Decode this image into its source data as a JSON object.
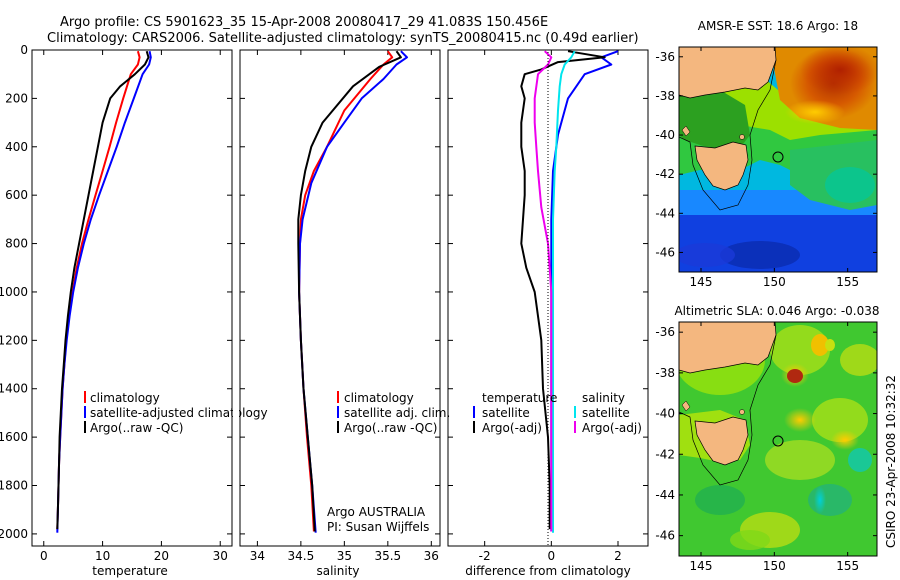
{
  "header": {
    "line1": "Argo profile: CS 5901623_35 15-Apr-2008 20080417_29 41.083S 150.456E",
    "line2": "Climatology: CARS2006. Satellite-adjusted climatology: synTS_20080415.nc (0.49d earlier)"
  },
  "footer": {
    "credit": "CSIRO 23-Apr-2008 10:32:32",
    "argo_agency": "Argo AUSTRALIA",
    "pi": "PI: Susan Wijffels"
  },
  "colors": {
    "climatology": "#ff0000",
    "satellite": "#0000ff",
    "argo": "#000000",
    "sal_satellite": "#00e5ee",
    "sal_argo": "#ee00ee",
    "land": "#f4b77f"
  },
  "chart_data": [
    {
      "type": "line",
      "panel": "temperature",
      "xlabel": "temperature",
      "ylabel": "",
      "xlim": [
        -2,
        32
      ],
      "ylim": [
        2050,
        0
      ],
      "xticks": [
        "0",
        "10",
        "20",
        "30"
      ],
      "yticks": [
        "0",
        "200",
        "400",
        "600",
        "800",
        "1000",
        "1200",
        "1400",
        "1600",
        "1800",
        "2000"
      ],
      "y_reversed": true,
      "legend": [
        "climatology",
        "satellite-adjusted climatology",
        "Argo(..raw -QC)"
      ],
      "series": [
        {
          "name": "climatology",
          "color": "#ff0000",
          "points": [
            [
              16.0,
              5
            ],
            [
              16.3,
              30
            ],
            [
              16.0,
              60
            ],
            [
              14.8,
              100
            ],
            [
              13.5,
              200
            ],
            [
              12.3,
              300
            ],
            [
              11.2,
              400
            ],
            [
              10.0,
              500
            ],
            [
              8.8,
              600
            ],
            [
              7.6,
              700
            ],
            [
              6.5,
              800
            ],
            [
              5.6,
              900
            ],
            [
              4.9,
              1000
            ],
            [
              4.3,
              1100
            ],
            [
              3.8,
              1200
            ],
            [
              3.5,
              1300
            ],
            [
              3.2,
              1400
            ],
            [
              3.0,
              1500
            ],
            [
              2.8,
              1600
            ],
            [
              2.6,
              1700
            ],
            [
              2.5,
              1800
            ],
            [
              2.4,
              1900
            ],
            [
              2.3,
              1980
            ]
          ]
        },
        {
          "name": "satellite-adjusted climatology",
          "color": "#0000ff",
          "points": [
            [
              18.0,
              5
            ],
            [
              18.2,
              30
            ],
            [
              17.9,
              60
            ],
            [
              16.8,
              100
            ],
            [
              15.3,
              200
            ],
            [
              13.8,
              300
            ],
            [
              12.4,
              400
            ],
            [
              10.9,
              500
            ],
            [
              9.4,
              600
            ],
            [
              8.0,
              700
            ],
            [
              6.8,
              800
            ],
            [
              5.8,
              900
            ],
            [
              5.0,
              1000
            ],
            [
              4.4,
              1100
            ],
            [
              3.9,
              1200
            ],
            [
              3.5,
              1300
            ],
            [
              3.2,
              1400
            ],
            [
              3.0,
              1500
            ],
            [
              2.8,
              1600
            ],
            [
              2.6,
              1700
            ],
            [
              2.5,
              1800
            ],
            [
              2.4,
              1900
            ],
            [
              2.3,
              1995
            ]
          ]
        },
        {
          "name": "Argo(..raw -QC)",
          "color": "#000000",
          "points": [
            [
              17.5,
              5
            ],
            [
              17.8,
              30
            ],
            [
              17.2,
              60
            ],
            [
              15.5,
              100
            ],
            [
              13.0,
              150
            ],
            [
              11.3,
              200
            ],
            [
              10.0,
              300
            ],
            [
              9.2,
              400
            ],
            [
              8.4,
              500
            ],
            [
              7.6,
              600
            ],
            [
              6.8,
              700
            ],
            [
              6.0,
              800
            ],
            [
              5.2,
              900
            ],
            [
              4.6,
              1000
            ],
            [
              4.1,
              1100
            ],
            [
              3.7,
              1200
            ],
            [
              3.4,
              1300
            ],
            [
              3.1,
              1400
            ],
            [
              2.9,
              1500
            ],
            [
              2.7,
              1600
            ],
            [
              2.6,
              1700
            ],
            [
              2.5,
              1800
            ],
            [
              2.4,
              1900
            ],
            [
              2.3,
              1980
            ]
          ]
        }
      ]
    },
    {
      "type": "line",
      "panel": "salinity",
      "xlabel": "salinity",
      "xlim": [
        33.8,
        36.1
      ],
      "ylim": [
        2050,
        0
      ],
      "xticks": [
        "34",
        "34.5",
        "35",
        "35.5",
        "36"
      ],
      "yticks": [],
      "y_reversed": true,
      "legend": [
        "climatology",
        "satellite adj. clim.",
        "Argo(..raw -QC)"
      ],
      "series": [
        {
          "name": "climatology",
          "color": "#ff0000",
          "points": [
            [
              35.5,
              5
            ],
            [
              35.55,
              30
            ],
            [
              35.45,
              60
            ],
            [
              35.3,
              120
            ],
            [
              35.0,
              250
            ],
            [
              34.8,
              400
            ],
            [
              34.65,
              500
            ],
            [
              34.55,
              600
            ],
            [
              34.5,
              700
            ],
            [
              34.49,
              800
            ],
            [
              34.48,
              1000
            ],
            [
              34.5,
              1200
            ],
            [
              34.53,
              1400
            ],
            [
              34.57,
              1600
            ],
            [
              34.62,
              1800
            ],
            [
              34.65,
              1990
            ]
          ]
        },
        {
          "name": "satellite adj. clim.",
          "color": "#0000ff",
          "points": [
            [
              35.65,
              5
            ],
            [
              35.72,
              30
            ],
            [
              35.6,
              60
            ],
            [
              35.45,
              120
            ],
            [
              35.2,
              200
            ],
            [
              35.0,
              300
            ],
            [
              34.8,
              400
            ],
            [
              34.62,
              550
            ],
            [
              34.52,
              700
            ],
            [
              34.49,
              800
            ],
            [
              34.48,
              1000
            ],
            [
              34.5,
              1200
            ],
            [
              34.53,
              1400
            ],
            [
              34.58,
              1600
            ],
            [
              34.63,
              1800
            ],
            [
              34.67,
              1995
            ]
          ]
        },
        {
          "name": "Argo(..raw -QC)",
          "color": "#000000",
          "points": [
            [
              35.6,
              5
            ],
            [
              35.65,
              30
            ],
            [
              35.4,
              70
            ],
            [
              35.1,
              150
            ],
            [
              34.75,
              300
            ],
            [
              34.62,
              400
            ],
            [
              34.55,
              500
            ],
            [
              34.5,
              600
            ],
            [
              34.47,
              700
            ],
            [
              34.47,
              800
            ],
            [
              34.48,
              1000
            ],
            [
              34.5,
              1200
            ],
            [
              34.53,
              1400
            ],
            [
              34.58,
              1600
            ],
            [
              34.63,
              1800
            ],
            [
              34.66,
              1990
            ]
          ]
        }
      ]
    },
    {
      "type": "line",
      "panel": "difference",
      "xlabel": "difference from climatology",
      "xlim": [
        -3.1,
        2.9
      ],
      "ylim": [
        2050,
        0
      ],
      "xticks": [
        "-2",
        "0",
        "2"
      ],
      "yticks": [],
      "y_reversed": true,
      "legend": [
        "temperature",
        "satellite",
        "Argo(-adj)",
        "salinity",
        "satellite",
        "Argo(-adj)"
      ],
      "series": [
        {
          "name": "temperature satellite",
          "color": "#0000ff",
          "points": [
            [
              2.0,
              5
            ],
            [
              1.5,
              30
            ],
            [
              1.8,
              60
            ],
            [
              1.0,
              100
            ],
            [
              0.5,
              200
            ],
            [
              0.2,
              350
            ],
            [
              0.05,
              500
            ],
            [
              0.0,
              700
            ],
            [
              0.0,
              1000
            ],
            [
              0.0,
              1500
            ],
            [
              0.0,
              1990
            ]
          ]
        },
        {
          "name": "temperature Argo(-adj)",
          "color": "#000000",
          "points": [
            [
              0.5,
              5
            ],
            [
              1.6,
              30
            ],
            [
              0.2,
              50
            ],
            [
              -0.3,
              80
            ],
            [
              -0.8,
              100
            ],
            [
              -0.9,
              150
            ],
            [
              -0.8,
              200
            ],
            [
              -0.9,
              300
            ],
            [
              -0.9,
              400
            ],
            [
              -0.8,
              500
            ],
            [
              -0.8,
              600
            ],
            [
              -0.85,
              700
            ],
            [
              -0.9,
              800
            ],
            [
              -0.75,
              900
            ],
            [
              -0.5,
              1000
            ],
            [
              -0.3,
              1200
            ],
            [
              -0.25,
              1400
            ],
            [
              -0.1,
              1600
            ],
            [
              -0.05,
              1800
            ],
            [
              -0.05,
              1980
            ]
          ]
        },
        {
          "name": "salinity satellite",
          "color": "#00e5ee",
          "points": [
            [
              0.7,
              5
            ],
            [
              0.6,
              30
            ],
            [
              0.4,
              60
            ],
            [
              0.3,
              100
            ],
            [
              0.25,
              150
            ],
            [
              0.2,
              250
            ],
            [
              0.15,
              400
            ],
            [
              0.1,
              500
            ],
            [
              0.05,
              700
            ],
            [
              0.05,
              1000
            ],
            [
              0.05,
              1500
            ],
            [
              0.05,
              1995
            ]
          ]
        },
        {
          "name": "salinity Argo(-adj)",
          "color": "#ee00ee",
          "points": [
            [
              -0.2,
              5
            ],
            [
              0.0,
              30
            ],
            [
              -0.1,
              60
            ],
            [
              -0.4,
              100
            ],
            [
              -0.5,
              200
            ],
            [
              -0.5,
              300
            ],
            [
              -0.45,
              400
            ],
            [
              -0.4,
              500
            ],
            [
              -0.3,
              650
            ],
            [
              -0.1,
              800
            ],
            [
              0.0,
              1000
            ],
            [
              0.0,
              1200
            ],
            [
              0.0,
              1500
            ],
            [
              0.0,
              1990
            ]
          ]
        }
      ]
    },
    {
      "type": "heatmap",
      "panel": "sst_map",
      "title": "AMSR-E SST: 18.6 Argo: 18",
      "xlim": [
        143.5,
        157
      ],
      "ylim": [
        -47,
        -35.5
      ],
      "xticks": [
        "145",
        "150",
        "155"
      ],
      "yticks": [
        "-36",
        "-38",
        "-40",
        "-42",
        "-44",
        "-46"
      ],
      "argo_position": [
        150.456,
        -41.083
      ]
    },
    {
      "type": "heatmap",
      "panel": "sla_map",
      "title": "Altimetric SLA: 0.046 Argo: -0.038",
      "xlim": [
        143.5,
        157
      ],
      "ylim": [
        -47,
        -35.5
      ],
      "xticks": [
        "145",
        "150",
        "155"
      ],
      "yticks": [
        "-36",
        "-38",
        "-40",
        "-42",
        "-44",
        "-46"
      ],
      "argo_position": [
        150.456,
        -41.083
      ]
    }
  ]
}
